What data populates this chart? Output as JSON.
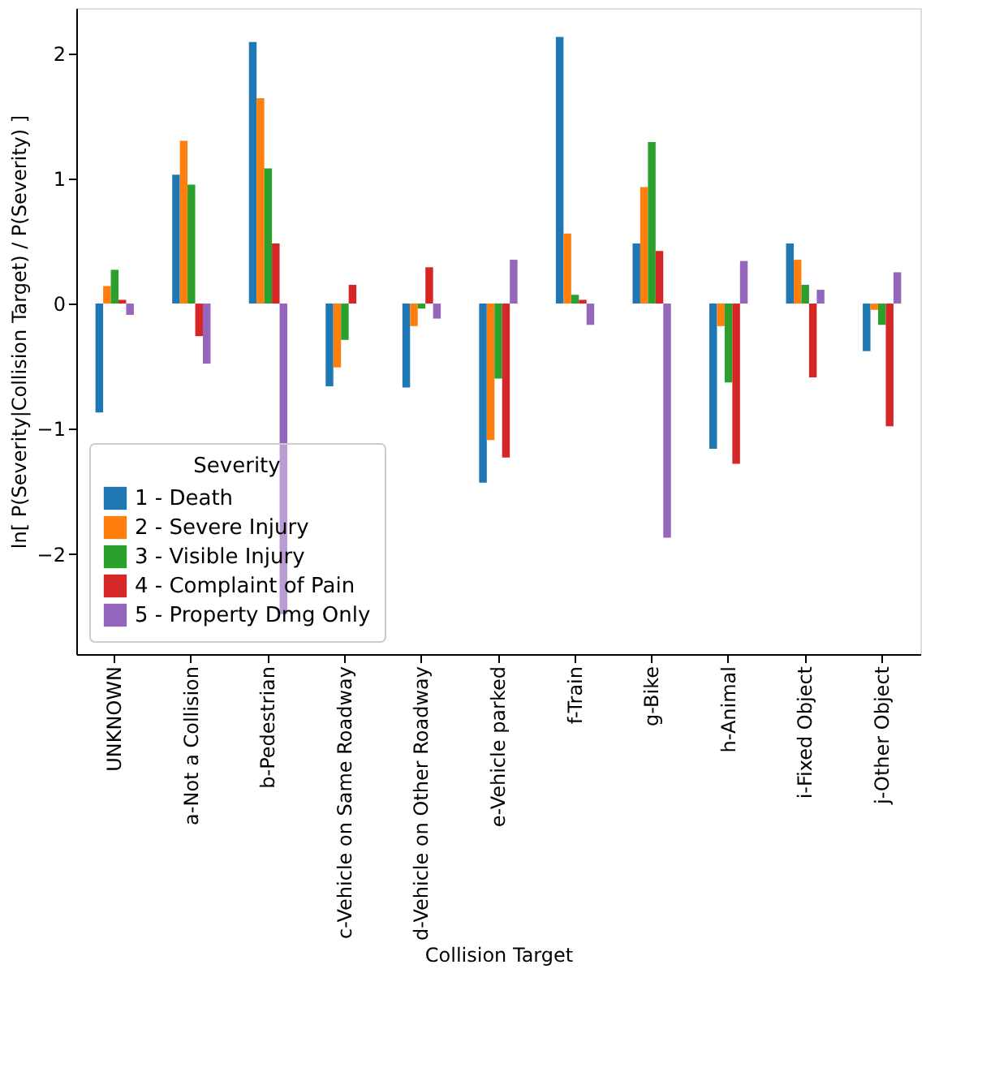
{
  "chart_data": {
    "type": "bar",
    "xlabel": "Collision Target",
    "ylabel": "ln[ P(Severity|Collision Target) / P(Severity) ]",
    "legend_title": "Severity",
    "legend": "bottom left",
    "grid": false,
    "categories": [
      "UNKNOWN",
      "a-Not a Collision",
      "b-Pedestrian",
      "c-Vehicle on Same Roadway",
      "d-Vehicle on Other Roadway",
      "e-Vehicle parked",
      "f-Train",
      "g-Bike",
      "h-Animal",
      "i-Fixed Object",
      "j-Other Object"
    ],
    "ylim": [
      -2.8,
      2.36
    ],
    "yticks": [
      {
        "value": -2,
        "label": "−2"
      },
      {
        "value": -1,
        "label": "−1"
      },
      0,
      1,
      2
    ],
    "series": [
      {
        "name": "1 - Death",
        "color": "#1f77b4",
        "values": [
          -0.87,
          1.03,
          2.09,
          -0.66,
          -0.67,
          -1.43,
          2.13,
          0.48,
          -1.16,
          0.48,
          -0.38
        ]
      },
      {
        "name": "2 - Severe Injury",
        "color": "#ff7f0e",
        "values": [
          0.14,
          1.3,
          1.64,
          -0.51,
          -0.18,
          -1.09,
          0.56,
          0.93,
          -0.18,
          0.35,
          -0.05
        ]
      },
      {
        "name": "3 - Visible Injury",
        "color": "#2ca02c",
        "values": [
          0.27,
          0.95,
          1.08,
          -0.29,
          -0.04,
          -0.6,
          0.07,
          1.29,
          -0.63,
          0.15,
          -0.17
        ]
      },
      {
        "name": "4 - Complaint of Pain",
        "color": "#d62728",
        "values": [
          0.03,
          -0.26,
          0.48,
          0.15,
          0.29,
          -1.23,
          0.03,
          0.42,
          -1.28,
          -0.59,
          -0.98
        ]
      },
      {
        "name": "5 - Property Dmg Only",
        "color": "#9467bd",
        "values": [
          -0.09,
          -0.48,
          -2.48,
          null,
          -0.12,
          0.35,
          -0.17,
          -1.87,
          0.34,
          0.11,
          0.25
        ]
      }
    ]
  }
}
